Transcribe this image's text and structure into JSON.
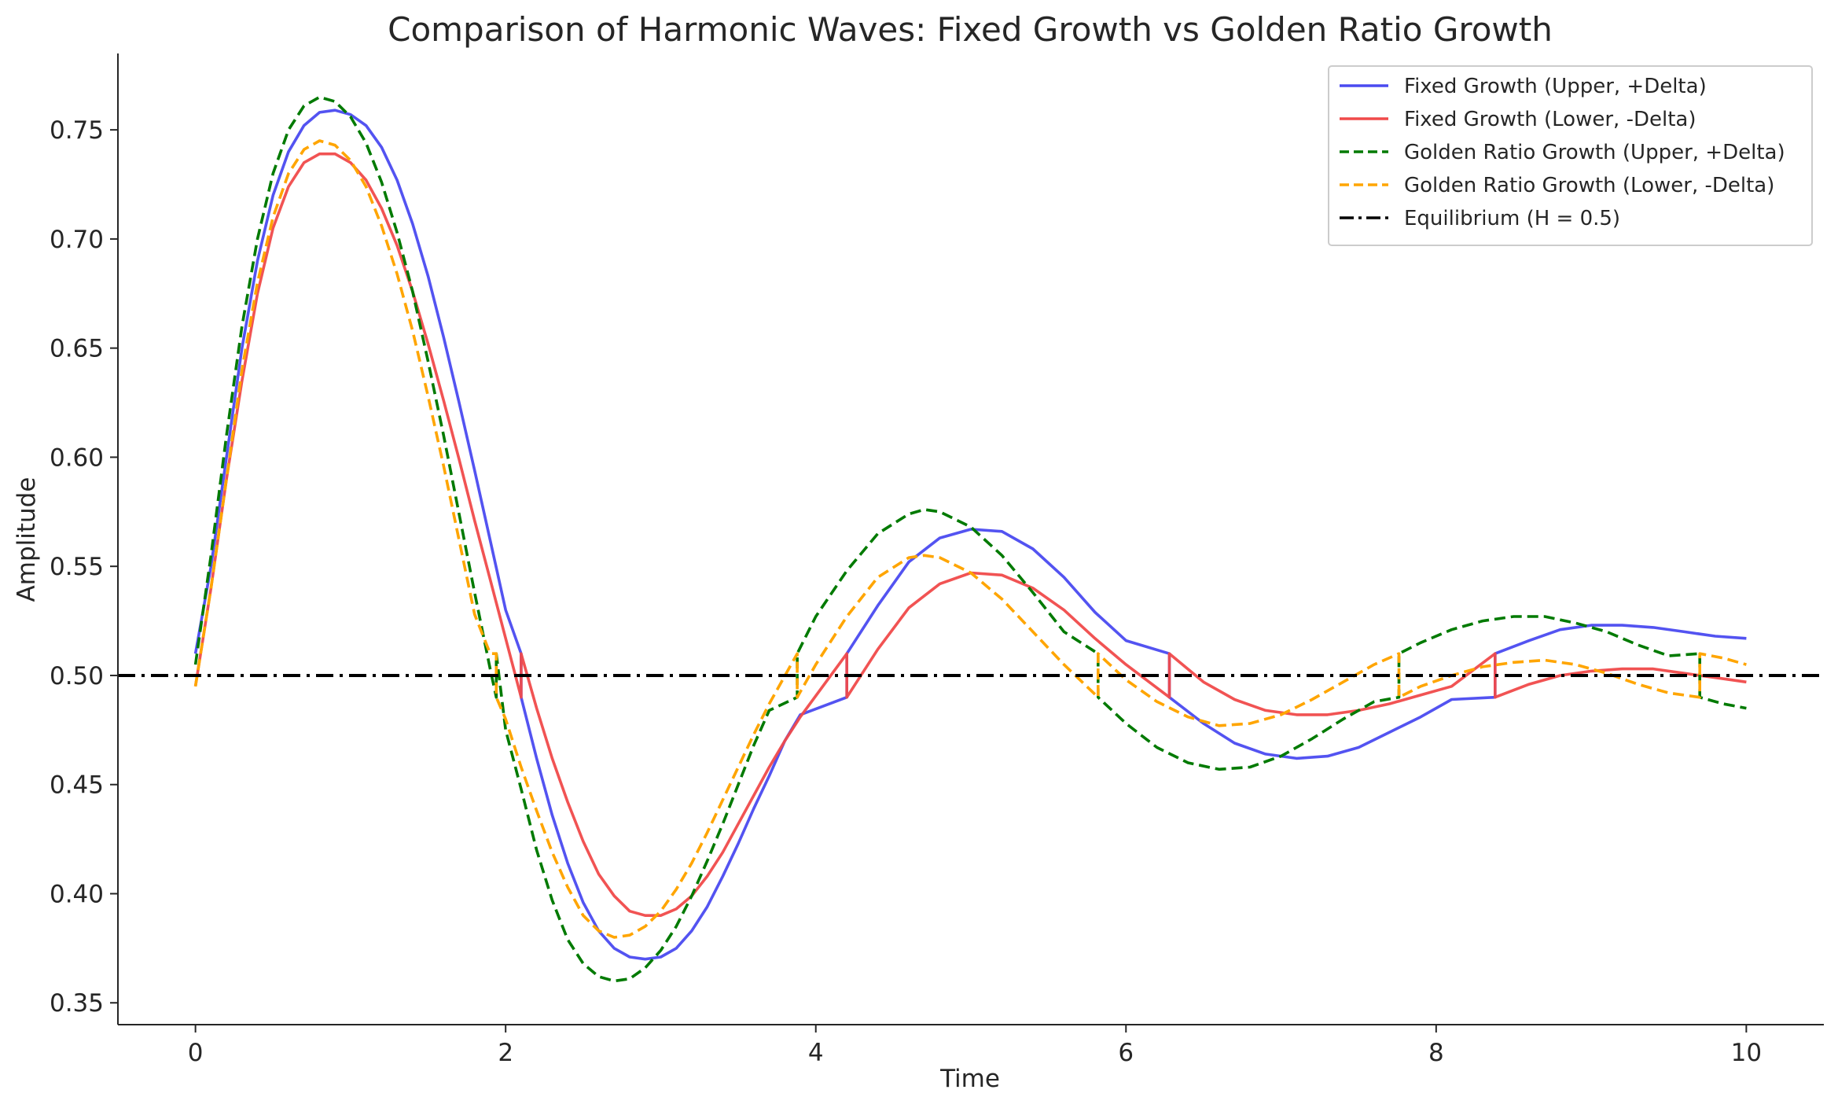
{
  "chart_data": {
    "type": "line",
    "title": "Comparison of Harmonic Waves: Fixed Growth vs Golden Ratio Growth",
    "xlabel": "Time",
    "ylabel": "Amplitude",
    "xlim": [
      -0.5,
      10.5
    ],
    "ylim": [
      0.34,
      0.785
    ],
    "xticks": [
      0,
      2,
      4,
      6,
      8,
      10
    ],
    "yticks": [
      0.35,
      0.4,
      0.45,
      0.5,
      0.55,
      0.6,
      0.65,
      0.7,
      0.75
    ],
    "ytick_labels": [
      "0.35",
      "0.40",
      "0.45",
      "0.50",
      "0.55",
      "0.60",
      "0.65",
      "0.70",
      "0.75"
    ],
    "grid": false,
    "legend_position": "top-right",
    "series": [
      {
        "name": "Fixed Growth (Upper, +Delta)",
        "color": "#4a4af0",
        "style": "solid",
        "points": [
          [
            0,
            0.51
          ],
          [
            0.1,
            0.55
          ],
          [
            0.2,
            0.6
          ],
          [
            0.3,
            0.65
          ],
          [
            0.4,
            0.69
          ],
          [
            0.5,
            0.72
          ],
          [
            0.6,
            0.74
          ],
          [
            0.7,
            0.752
          ],
          [
            0.8,
            0.758
          ],
          [
            0.9,
            0.759
          ],
          [
            1.0,
            0.757
          ],
          [
            1.1,
            0.752
          ],
          [
            1.2,
            0.742
          ],
          [
            1.3,
            0.727
          ],
          [
            1.4,
            0.707
          ],
          [
            1.5,
            0.683
          ],
          [
            1.6,
            0.655
          ],
          [
            1.7,
            0.625
          ],
          [
            1.8,
            0.594
          ],
          [
            1.9,
            0.562
          ],
          [
            2.0,
            0.53
          ],
          [
            2.1,
            0.51
          ],
          [
            2.1,
            0.49
          ],
          [
            2.2,
            0.462
          ],
          [
            2.3,
            0.436
          ],
          [
            2.4,
            0.414
          ],
          [
            2.5,
            0.396
          ],
          [
            2.6,
            0.383
          ],
          [
            2.7,
            0.375
          ],
          [
            2.8,
            0.371
          ],
          [
            2.9,
            0.37
          ],
          [
            3.0,
            0.371
          ],
          [
            3.1,
            0.375
          ],
          [
            3.2,
            0.383
          ],
          [
            3.3,
            0.394
          ],
          [
            3.4,
            0.408
          ],
          [
            3.5,
            0.423
          ],
          [
            3.6,
            0.439
          ],
          [
            3.7,
            0.454
          ],
          [
            3.8,
            0.47
          ],
          [
            3.9,
            0.482
          ],
          [
            4.2,
            0.49
          ],
          [
            4.2,
            0.51
          ],
          [
            4.4,
            0.532
          ],
          [
            4.6,
            0.552
          ],
          [
            4.8,
            0.563
          ],
          [
            5.0,
            0.567
          ],
          [
            5.2,
            0.566
          ],
          [
            5.4,
            0.558
          ],
          [
            5.6,
            0.545
          ],
          [
            5.8,
            0.529
          ],
          [
            6.0,
            0.516
          ],
          [
            6.28,
            0.51
          ],
          [
            6.28,
            0.49
          ],
          [
            6.5,
            0.478
          ],
          [
            6.7,
            0.469
          ],
          [
            6.9,
            0.464
          ],
          [
            7.1,
            0.462
          ],
          [
            7.3,
            0.463
          ],
          [
            7.5,
            0.467
          ],
          [
            7.7,
            0.474
          ],
          [
            7.9,
            0.481
          ],
          [
            8.1,
            0.489
          ],
          [
            8.38,
            0.49
          ],
          [
            8.38,
            0.51
          ],
          [
            8.6,
            0.516
          ],
          [
            8.8,
            0.521
          ],
          [
            9.0,
            0.523
          ],
          [
            9.2,
            0.523
          ],
          [
            9.4,
            0.522
          ],
          [
            9.6,
            0.52
          ],
          [
            9.8,
            0.518
          ],
          [
            10.0,
            0.517
          ]
        ]
      },
      {
        "name": "Fixed Growth (Lower, -Delta)",
        "color": "#f04a4a",
        "style": "solid",
        "points": [
          [
            0,
            0.495
          ],
          [
            0.1,
            0.54
          ],
          [
            0.2,
            0.59
          ],
          [
            0.3,
            0.635
          ],
          [
            0.4,
            0.675
          ],
          [
            0.5,
            0.705
          ],
          [
            0.6,
            0.724
          ],
          [
            0.7,
            0.735
          ],
          [
            0.8,
            0.739
          ],
          [
            0.9,
            0.739
          ],
          [
            1.0,
            0.735
          ],
          [
            1.1,
            0.727
          ],
          [
            1.2,
            0.714
          ],
          [
            1.3,
            0.697
          ],
          [
            1.4,
            0.676
          ],
          [
            1.5,
            0.652
          ],
          [
            1.6,
            0.626
          ],
          [
            1.7,
            0.599
          ],
          [
            1.8,
            0.571
          ],
          [
            1.9,
            0.544
          ],
          [
            2.0,
            0.517
          ],
          [
            2.1,
            0.49
          ],
          [
            2.1,
            0.51
          ],
          [
            2.2,
            0.485
          ],
          [
            2.3,
            0.462
          ],
          [
            2.4,
            0.442
          ],
          [
            2.5,
            0.424
          ],
          [
            2.6,
            0.409
          ],
          [
            2.7,
            0.399
          ],
          [
            2.8,
            0.392
          ],
          [
            2.9,
            0.39
          ],
          [
            3.0,
            0.39
          ],
          [
            3.1,
            0.393
          ],
          [
            3.2,
            0.399
          ],
          [
            3.3,
            0.408
          ],
          [
            3.4,
            0.419
          ],
          [
            3.5,
            0.432
          ],
          [
            3.6,
            0.445
          ],
          [
            3.7,
            0.458
          ],
          [
            3.8,
            0.47
          ],
          [
            3.9,
            0.481
          ],
          [
            4.2,
            0.51
          ],
          [
            4.2,
            0.49
          ],
          [
            4.4,
            0.512
          ],
          [
            4.6,
            0.531
          ],
          [
            4.8,
            0.542
          ],
          [
            5.0,
            0.547
          ],
          [
            5.2,
            0.546
          ],
          [
            5.4,
            0.54
          ],
          [
            5.6,
            0.53
          ],
          [
            5.8,
            0.517
          ],
          [
            6.0,
            0.505
          ],
          [
            6.28,
            0.49
          ],
          [
            6.28,
            0.51
          ],
          [
            6.5,
            0.497
          ],
          [
            6.7,
            0.489
          ],
          [
            6.9,
            0.484
          ],
          [
            7.1,
            0.482
          ],
          [
            7.3,
            0.482
          ],
          [
            7.5,
            0.484
          ],
          [
            7.7,
            0.487
          ],
          [
            7.9,
            0.491
          ],
          [
            8.1,
            0.495
          ],
          [
            8.38,
            0.51
          ],
          [
            8.38,
            0.49
          ],
          [
            8.6,
            0.496
          ],
          [
            8.8,
            0.5
          ],
          [
            9.0,
            0.502
          ],
          [
            9.2,
            0.503
          ],
          [
            9.4,
            0.503
          ],
          [
            9.6,
            0.501
          ],
          [
            9.8,
            0.499
          ],
          [
            10.0,
            0.497
          ]
        ]
      },
      {
        "name": "Golden Ratio Growth (Upper, +Delta)",
        "color": "#007a00",
        "style": "dashed",
        "points": [
          [
            0,
            0.505
          ],
          [
            0.1,
            0.555
          ],
          [
            0.2,
            0.61
          ],
          [
            0.3,
            0.66
          ],
          [
            0.4,
            0.7
          ],
          [
            0.5,
            0.73
          ],
          [
            0.6,
            0.75
          ],
          [
            0.7,
            0.761
          ],
          [
            0.8,
            0.765
          ],
          [
            0.9,
            0.763
          ],
          [
            1.0,
            0.756
          ],
          [
            1.1,
            0.744
          ],
          [
            1.2,
            0.726
          ],
          [
            1.3,
            0.703
          ],
          [
            1.4,
            0.676
          ],
          [
            1.5,
            0.644
          ],
          [
            1.6,
            0.61
          ],
          [
            1.7,
            0.574
          ],
          [
            1.8,
            0.538
          ],
          [
            1.9,
            0.503
          ],
          [
            1.94,
            0.49
          ],
          [
            1.94,
            0.51
          ],
          [
            2.0,
            0.475
          ],
          [
            2.1,
            0.448
          ],
          [
            2.2,
            0.42
          ],
          [
            2.3,
            0.397
          ],
          [
            2.4,
            0.379
          ],
          [
            2.5,
            0.368
          ],
          [
            2.6,
            0.362
          ],
          [
            2.7,
            0.36
          ],
          [
            2.8,
            0.361
          ],
          [
            2.9,
            0.366
          ],
          [
            3.0,
            0.374
          ],
          [
            3.1,
            0.385
          ],
          [
            3.2,
            0.399
          ],
          [
            3.3,
            0.415
          ],
          [
            3.4,
            0.432
          ],
          [
            3.5,
            0.45
          ],
          [
            3.6,
            0.468
          ],
          [
            3.7,
            0.484
          ],
          [
            3.88,
            0.49
          ],
          [
            3.88,
            0.51
          ],
          [
            4.0,
            0.527
          ],
          [
            4.2,
            0.548
          ],
          [
            4.4,
            0.565
          ],
          [
            4.6,
            0.574
          ],
          [
            4.7,
            0.576
          ],
          [
            4.8,
            0.575
          ],
          [
            5.0,
            0.568
          ],
          [
            5.2,
            0.555
          ],
          [
            5.4,
            0.538
          ],
          [
            5.6,
            0.52
          ],
          [
            5.82,
            0.51
          ],
          [
            5.82,
            0.49
          ],
          [
            6.0,
            0.478
          ],
          [
            6.2,
            0.467
          ],
          [
            6.4,
            0.46
          ],
          [
            6.6,
            0.457
          ],
          [
            6.8,
            0.458
          ],
          [
            7.0,
            0.463
          ],
          [
            7.2,
            0.471
          ],
          [
            7.4,
            0.48
          ],
          [
            7.6,
            0.488
          ],
          [
            7.76,
            0.49
          ],
          [
            7.76,
            0.51
          ],
          [
            7.9,
            0.515
          ],
          [
            8.1,
            0.521
          ],
          [
            8.3,
            0.525
          ],
          [
            8.5,
            0.527
          ],
          [
            8.7,
            0.527
          ],
          [
            8.9,
            0.524
          ],
          [
            9.1,
            0.52
          ],
          [
            9.3,
            0.514
          ],
          [
            9.5,
            0.509
          ],
          [
            9.7,
            0.51
          ],
          [
            9.7,
            0.49
          ],
          [
            9.85,
            0.487
          ],
          [
            10.0,
            0.485
          ]
        ]
      },
      {
        "name": "Golden Ratio Growth (Lower, -Delta)",
        "color": "#ffa500",
        "style": "dashed",
        "points": [
          [
            0,
            0.495
          ],
          [
            0.1,
            0.54
          ],
          [
            0.2,
            0.59
          ],
          [
            0.3,
            0.64
          ],
          [
            0.4,
            0.68
          ],
          [
            0.5,
            0.71
          ],
          [
            0.6,
            0.73
          ],
          [
            0.7,
            0.741
          ],
          [
            0.8,
            0.745
          ],
          [
            0.9,
            0.743
          ],
          [
            1.0,
            0.736
          ],
          [
            1.1,
            0.724
          ],
          [
            1.2,
            0.706
          ],
          [
            1.3,
            0.684
          ],
          [
            1.4,
            0.658
          ],
          [
            1.5,
            0.628
          ],
          [
            1.6,
            0.596
          ],
          [
            1.7,
            0.562
          ],
          [
            1.8,
            0.528
          ],
          [
            1.9,
            0.51
          ],
          [
            1.94,
            0.51
          ],
          [
            1.94,
            0.49
          ],
          [
            2.0,
            0.48
          ],
          [
            2.1,
            0.458
          ],
          [
            2.2,
            0.438
          ],
          [
            2.3,
            0.419
          ],
          [
            2.4,
            0.403
          ],
          [
            2.5,
            0.39
          ],
          [
            2.6,
            0.383
          ],
          [
            2.7,
            0.38
          ],
          [
            2.8,
            0.381
          ],
          [
            2.9,
            0.385
          ],
          [
            3.0,
            0.392
          ],
          [
            3.1,
            0.402
          ],
          [
            3.2,
            0.414
          ],
          [
            3.3,
            0.428
          ],
          [
            3.4,
            0.443
          ],
          [
            3.5,
            0.458
          ],
          [
            3.6,
            0.473
          ],
          [
            3.7,
            0.487
          ],
          [
            3.88,
            0.51
          ],
          [
            3.88,
            0.49
          ],
          [
            4.0,
            0.505
          ],
          [
            4.2,
            0.527
          ],
          [
            4.4,
            0.545
          ],
          [
            4.6,
            0.554
          ],
          [
            4.7,
            0.555
          ],
          [
            4.8,
            0.554
          ],
          [
            5.0,
            0.547
          ],
          [
            5.2,
            0.535
          ],
          [
            5.4,
            0.52
          ],
          [
            5.6,
            0.505
          ],
          [
            5.82,
            0.49
          ],
          [
            5.82,
            0.51
          ],
          [
            6.0,
            0.498
          ],
          [
            6.2,
            0.488
          ],
          [
            6.4,
            0.481
          ],
          [
            6.6,
            0.477
          ],
          [
            6.8,
            0.478
          ],
          [
            7.0,
            0.482
          ],
          [
            7.2,
            0.489
          ],
          [
            7.4,
            0.497
          ],
          [
            7.6,
            0.505
          ],
          [
            7.76,
            0.51
          ],
          [
            7.76,
            0.49
          ],
          [
            7.9,
            0.495
          ],
          [
            8.1,
            0.5
          ],
          [
            8.3,
            0.504
          ],
          [
            8.5,
            0.506
          ],
          [
            8.7,
            0.507
          ],
          [
            8.9,
            0.505
          ],
          [
            9.1,
            0.501
          ],
          [
            9.3,
            0.496
          ],
          [
            9.5,
            0.492
          ],
          [
            9.7,
            0.49
          ],
          [
            9.7,
            0.51
          ],
          [
            9.85,
            0.508
          ],
          [
            10.0,
            0.505
          ]
        ]
      },
      {
        "name": "Equilibrium (H = 0.5)",
        "color": "#000000",
        "style": "dashdot",
        "points": [
          [
            -0.5,
            0.5
          ],
          [
            10.5,
            0.5
          ]
        ]
      }
    ]
  }
}
